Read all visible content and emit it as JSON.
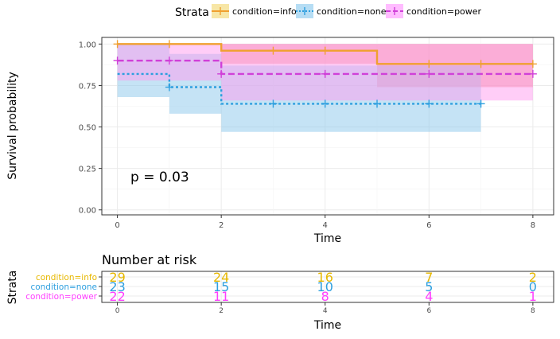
{
  "chart_data": [
    {
      "type": "line",
      "subtype": "step",
      "title": "",
      "xlabel": "Time",
      "ylabel": "Survival probability",
      "xlim": [
        -0.3,
        8.4
      ],
      "ylim": [
        -0.03,
        1.04
      ],
      "x_ticks": [
        "0",
        "2",
        "4",
        "6",
        "8"
      ],
      "y_ticks": [
        "0.00",
        "0.25",
        "0.50",
        "0.75",
        "1.00"
      ],
      "grid": true,
      "annotation": "p = 0.03",
      "legend": {
        "title": "Strata",
        "placement": "top"
      },
      "series": [
        {
          "name": "condition=info",
          "color": "#E7B800",
          "line_color": "#F0A030",
          "band_color": "#F08080",
          "dash": "solid",
          "steps": [
            [
              0,
              1.0
            ],
            [
              2,
              0.96
            ],
            [
              5,
              0.88
            ],
            [
              8,
              0.88
            ]
          ],
          "lower": [
            [
              0,
              1.0
            ],
            [
              2,
              0.88
            ],
            [
              5,
              0.74
            ],
            [
              8,
              0.74
            ]
          ],
          "upper": [
            [
              0,
              1.0
            ],
            [
              2,
              1.0
            ],
            [
              5,
              1.0
            ],
            [
              8,
              1.0
            ]
          ],
          "censor_x": [
            0,
            1,
            3,
            4,
            6,
            7,
            8
          ]
        },
        {
          "name": "condition=none",
          "color": "#2E9FDF",
          "line_color": "#2E9FDF",
          "band_color": "#8CC8EC",
          "dash": "dotted",
          "steps": [
            [
              0,
              0.82
            ],
            [
              1,
              0.74
            ],
            [
              2,
              0.64
            ],
            [
              7,
              0.64
            ]
          ],
          "lower": [
            [
              0,
              0.68
            ],
            [
              1,
              0.58
            ],
            [
              2,
              0.47
            ],
            [
              7,
              0.47
            ]
          ],
          "upper": [
            [
              0,
              1.0
            ],
            [
              1,
              0.94
            ],
            [
              2,
              0.87
            ],
            [
              7,
              0.87
            ]
          ],
          "censor_x": [
            1,
            3,
            4,
            5,
            6,
            7
          ]
        },
        {
          "name": "condition=power",
          "color": "#FF3EFF",
          "line_color": "#D040D8",
          "band_color": "#FF9CF0",
          "dash": "dashed",
          "steps": [
            [
              0,
              0.9
            ],
            [
              2,
              0.82
            ],
            [
              8,
              0.82
            ]
          ],
          "lower": [
            [
              0,
              0.78
            ],
            [
              2,
              0.66
            ],
            [
              8,
              0.66
            ]
          ],
          "upper": [
            [
              0,
              1.0
            ],
            [
              2,
              1.0
            ],
            [
              8,
              1.0
            ]
          ],
          "censor_x": [
            0,
            1,
            2,
            4,
            6,
            8
          ]
        }
      ]
    },
    {
      "type": "table",
      "title": "Number at risk",
      "xlabel": "Time",
      "ylabel": "Strata",
      "x": [
        0,
        2,
        4,
        6,
        8
      ],
      "x_ticks": [
        "0",
        "2",
        "4",
        "6",
        "8"
      ],
      "rows": [
        {
          "name": "condition=info",
          "color": "#E7B800",
          "values": [
            "29",
            "24",
            "16",
            "7",
            "2"
          ]
        },
        {
          "name": "condition=none",
          "color": "#2E9FDF",
          "values": [
            "23",
            "15",
            "10",
            "5",
            "0"
          ]
        },
        {
          "name": "condition=power",
          "color": "#FF3EFF",
          "values": [
            "22",
            "11",
            "8",
            "4",
            "1"
          ]
        }
      ]
    }
  ]
}
